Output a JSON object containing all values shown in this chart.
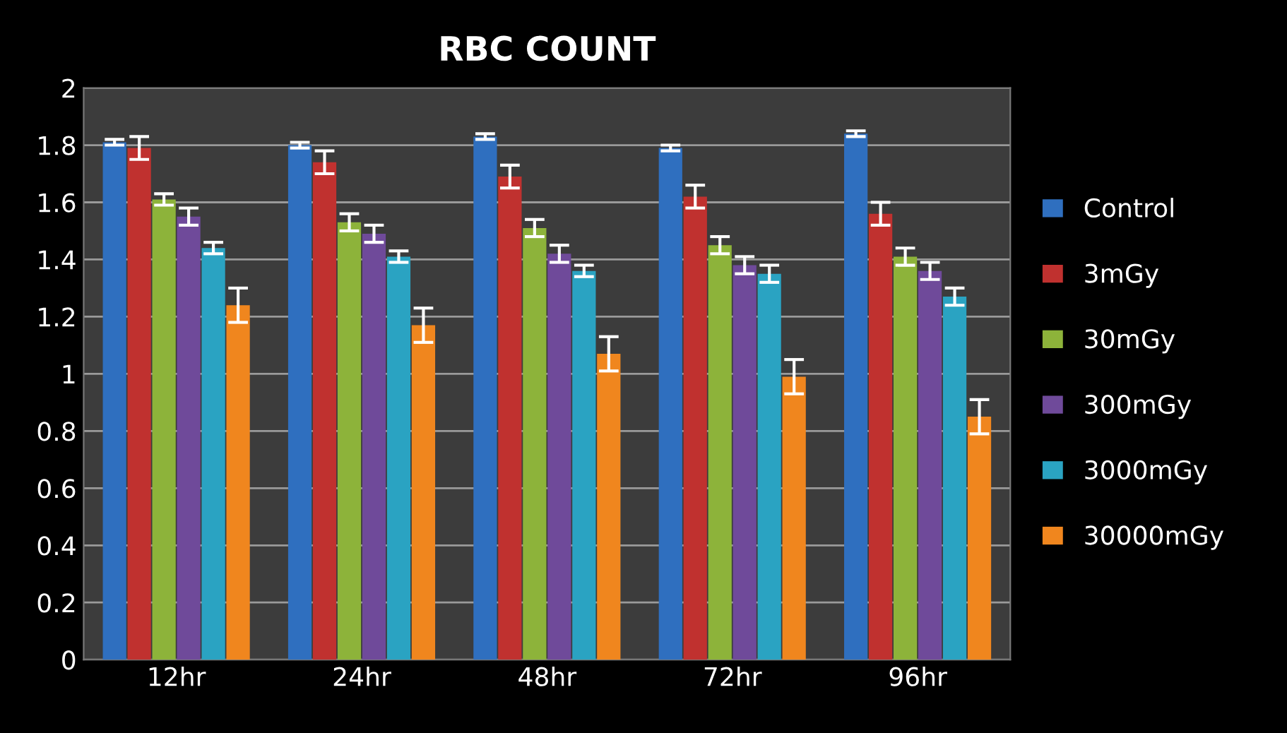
{
  "chart_data": {
    "type": "bar",
    "title": "RBC COUNT",
    "categories": [
      "12hr",
      "24hr",
      "48hr",
      "72hr",
      "96hr"
    ],
    "series": [
      {
        "name": "Control",
        "color": "#2f6fbf",
        "values": [
          1.81,
          1.8,
          1.83,
          1.79,
          1.84
        ],
        "errors": [
          0.01,
          0.01,
          0.01,
          0.01,
          0.01
        ]
      },
      {
        "name": "3mGy",
        "color": "#c0312f",
        "values": [
          1.79,
          1.74,
          1.69,
          1.62,
          1.56
        ],
        "errors": [
          0.04,
          0.04,
          0.04,
          0.04,
          0.04
        ]
      },
      {
        "name": "30mGy",
        "color": "#8db33a",
        "values": [
          1.61,
          1.53,
          1.51,
          1.45,
          1.41
        ],
        "errors": [
          0.02,
          0.03,
          0.03,
          0.03,
          0.03
        ]
      },
      {
        "name": "300mGy",
        "color": "#6f4a9a",
        "values": [
          1.55,
          1.49,
          1.42,
          1.38,
          1.36
        ],
        "errors": [
          0.03,
          0.03,
          0.03,
          0.03,
          0.03
        ]
      },
      {
        "name": "3000mGy",
        "color": "#2aa3c2",
        "values": [
          1.44,
          1.41,
          1.36,
          1.35,
          1.27
        ],
        "errors": [
          0.02,
          0.02,
          0.02,
          0.03,
          0.03
        ]
      },
      {
        "name": "30000mGy",
        "color": "#f0861e",
        "values": [
          1.24,
          1.17,
          1.07,
          0.99,
          0.85
        ],
        "errors": [
          0.06,
          0.06,
          0.06,
          0.06,
          0.06
        ]
      }
    ],
    "ylim": [
      0,
      2
    ],
    "yticks": [
      0,
      0.2,
      0.4,
      0.6,
      0.8,
      1,
      1.2,
      1.4,
      1.6,
      1.8,
      2
    ],
    "grid": "y",
    "legend": "right"
  }
}
